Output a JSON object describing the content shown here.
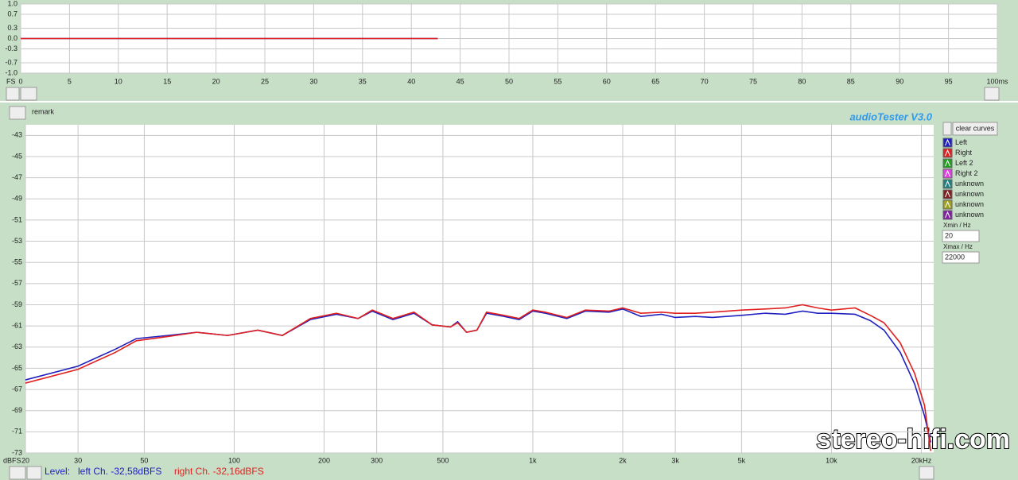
{
  "chart_data": [
    {
      "type": "line",
      "x_label": "FS",
      "x": [
        0,
        5,
        10,
        15,
        20,
        25,
        30,
        35,
        40,
        42.7
      ],
      "series": [
        {
          "name": "Left",
          "color": "#2020c0",
          "values": [
            0,
            0,
            0,
            0,
            0,
            0,
            0,
            0,
            0,
            0
          ]
        },
        {
          "name": "Right",
          "color": "#e02020",
          "values": [
            0,
            0,
            0,
            0,
            0,
            0,
            0,
            0,
            0,
            0
          ]
        }
      ],
      "xlim": [
        0,
        100
      ],
      "xticks": [
        0,
        5,
        10,
        15,
        20,
        25,
        30,
        35,
        40,
        45,
        50,
        55,
        60,
        65,
        70,
        75,
        80,
        85,
        90,
        95,
        {
          "value": 100,
          "label": "100ms"
        }
      ],
      "ylim": [
        -1,
        1
      ],
      "yticks": [
        {
          "value": 1,
          "label": "1.0"
        },
        0.7,
        0.3,
        {
          "value": 0,
          "label": "0.0"
        },
        -0.3,
        -0.7,
        {
          "value": -1,
          "label": "-1.0"
        }
      ],
      "grid": true
    },
    {
      "type": "line",
      "y_label": "dBFS",
      "log_x": true,
      "x": [
        20,
        30,
        40,
        47,
        60,
        75,
        95,
        120,
        145,
        180,
        220,
        260,
        290,
        340,
        400,
        460,
        530,
        560,
        600,
        650,
        700,
        800,
        900,
        1000,
        1100,
        1300,
        1500,
        1800,
        2000,
        2300,
        2700,
        3000,
        3500,
        4000,
        5000,
        6000,
        7000,
        8000,
        9000,
        10000,
        12000,
        13500,
        15000,
        17000,
        19000,
        20500,
        21500
      ],
      "series": [
        {
          "name": "Left",
          "color": "#2020c0",
          "values": [
            -66.1,
            -64.8,
            -63.2,
            -62.2,
            -61.9,
            -61.6,
            -61.9,
            -61.4,
            -61.9,
            -60.4,
            -59.9,
            -60.3,
            -59.6,
            -60.4,
            -59.8,
            -60.9,
            -61.1,
            -60.6,
            -61.6,
            -61.4,
            -59.8,
            -60.1,
            -60.4,
            -59.6,
            -59.8,
            -60.3,
            -59.6,
            -59.7,
            -59.4,
            -60.1,
            -59.9,
            -60.2,
            -60.1,
            -60.2,
            -60.0,
            -59.8,
            -59.9,
            -59.6,
            -59.8,
            -59.8,
            -59.9,
            -60.5,
            -61.4,
            -63.5,
            -66.5,
            -69.5,
            -72
          ]
        },
        {
          "name": "Right",
          "color": "#e02020",
          "values": [
            -66.4,
            -65.1,
            -63.5,
            -62.4,
            -62.0,
            -61.6,
            -61.9,
            -61.4,
            -61.9,
            -60.3,
            -59.8,
            -60.3,
            -59.5,
            -60.3,
            -59.7,
            -60.9,
            -61.1,
            -60.7,
            -61.6,
            -61.4,
            -59.7,
            -60.0,
            -60.3,
            -59.5,
            -59.7,
            -60.2,
            -59.5,
            -59.6,
            -59.3,
            -59.8,
            -59.7,
            -59.8,
            -59.8,
            -59.7,
            -59.5,
            -59.4,
            -59.3,
            -59.0,
            -59.3,
            -59.5,
            -59.3,
            -60.0,
            -60.7,
            -62.6,
            -65.5,
            -68.5,
            -72.8
          ]
        }
      ],
      "xlim": [
        20,
        22000
      ],
      "xticks": [
        20,
        30,
        50,
        100,
        200,
        300,
        500,
        {
          "value": 1000,
          "label": "1k"
        },
        {
          "value": 2000,
          "label": "2k"
        },
        {
          "value": 3000,
          "label": "3k"
        },
        {
          "value": 5000,
          "label": "5k"
        },
        {
          "value": 10000,
          "label": "10k"
        },
        {
          "value": 20000,
          "label": "20kHz"
        }
      ],
      "ylim": [
        -73,
        -42
      ],
      "yticks": [
        -43,
        -45,
        -47,
        -49,
        -51,
        -53,
        -55,
        -57,
        -59,
        -61,
        -63,
        -65,
        -67,
        -69,
        -71,
        -73
      ],
      "grid": true
    }
  ],
  "ui": {
    "remark": "remark",
    "brand": "audioTester  V3.0",
    "clear_button": "clear curves",
    "extra_curves": [
      {
        "name": "Left 2",
        "color": "#20a020"
      },
      {
        "name": "Right 2",
        "color": "#e040e0"
      },
      {
        "name": "unknown",
        "color": "#208080"
      },
      {
        "name": "unknown",
        "color": "#802020"
      },
      {
        "name": "unknown",
        "color": "#a0a020"
      },
      {
        "name": "unknown",
        "color": "#8020a0"
      }
    ],
    "xmin_label": "Xmin / Hz",
    "xmin_value": "20",
    "xmax_label": "Xmax / Hz",
    "xmax_value": "22000",
    "level_label": "Level:",
    "left_level": "left Ch. -32,58dBFS",
    "right_level": "right Ch. -32,16dBFS",
    "watermark": "stereo-hifi.com"
  }
}
